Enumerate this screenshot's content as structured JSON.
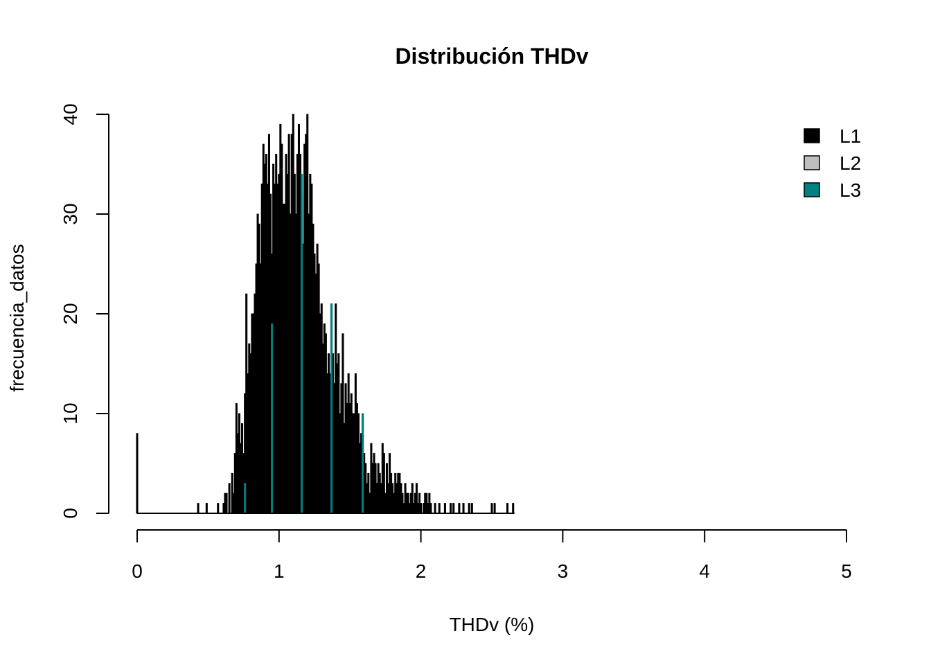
{
  "chart_data": {
    "type": "bar",
    "title": "Distribución THDv",
    "xlabel": "THDv (%)",
    "ylabel": "frecuencia_datos",
    "xlim": [
      0,
      5
    ],
    "ylim": [
      0,
      40
    ],
    "x_ticks": [
      "0",
      "1",
      "2",
      "3",
      "4",
      "5"
    ],
    "y_ticks": [
      "0",
      "10",
      "20",
      "30",
      "40"
    ],
    "grid": false,
    "legend_position": "top-right",
    "bin_width": 0.01,
    "series": [
      {
        "name": "L1",
        "color": "#000000",
        "points": [
          [
            0.0,
            8
          ],
          [
            0.43,
            1
          ],
          [
            0.49,
            1
          ],
          [
            0.57,
            1
          ],
          [
            0.61,
            1
          ],
          [
            0.62,
            2
          ],
          [
            0.63,
            2
          ],
          [
            0.65,
            3
          ],
          [
            0.67,
            4
          ],
          [
            0.68,
            2
          ],
          [
            0.69,
            6
          ],
          [
            0.7,
            11
          ],
          [
            0.71,
            8
          ],
          [
            0.72,
            10
          ],
          [
            0.73,
            7
          ],
          [
            0.74,
            9
          ],
          [
            0.75,
            6
          ],
          [
            0.76,
            12
          ],
          [
            0.77,
            22
          ],
          [
            0.78,
            14
          ],
          [
            0.79,
            17
          ],
          [
            0.8,
            16
          ],
          [
            0.81,
            20
          ],
          [
            0.82,
            20
          ],
          [
            0.83,
            22
          ],
          [
            0.84,
            25
          ],
          [
            0.85,
            30
          ],
          [
            0.86,
            29
          ],
          [
            0.87,
            25
          ],
          [
            0.88,
            33
          ],
          [
            0.89,
            37
          ],
          [
            0.9,
            35
          ],
          [
            0.91,
            36
          ],
          [
            0.92,
            33
          ],
          [
            0.93,
            38
          ],
          [
            0.94,
            32
          ],
          [
            0.95,
            26
          ],
          [
            0.96,
            35
          ],
          [
            0.97,
            33
          ],
          [
            0.98,
            36
          ],
          [
            0.99,
            33
          ],
          [
            1.0,
            34
          ],
          [
            1.01,
            39
          ],
          [
            1.02,
            37
          ],
          [
            1.03,
            31
          ],
          [
            1.04,
            31
          ],
          [
            1.05,
            36
          ],
          [
            1.06,
            34
          ],
          [
            1.07,
            38
          ],
          [
            1.08,
            30
          ],
          [
            1.09,
            38
          ],
          [
            1.1,
            40
          ],
          [
            1.11,
            34
          ],
          [
            1.12,
            30
          ],
          [
            1.13,
            36
          ],
          [
            1.14,
            39
          ],
          [
            1.15,
            36
          ],
          [
            1.16,
            32
          ],
          [
            1.17,
            27
          ],
          [
            1.18,
            37
          ],
          [
            1.19,
            38
          ],
          [
            1.2,
            40
          ],
          [
            1.21,
            30
          ],
          [
            1.22,
            34
          ],
          [
            1.23,
            33
          ],
          [
            1.24,
            29
          ],
          [
            1.25,
            26
          ],
          [
            1.26,
            24
          ],
          [
            1.27,
            27
          ],
          [
            1.28,
            25
          ],
          [
            1.29,
            20
          ],
          [
            1.3,
            21
          ],
          [
            1.31,
            17
          ],
          [
            1.32,
            19
          ],
          [
            1.33,
            18
          ],
          [
            1.34,
            14
          ],
          [
            1.35,
            16
          ],
          [
            1.36,
            14
          ],
          [
            1.37,
            21
          ],
          [
            1.38,
            16
          ],
          [
            1.39,
            13
          ],
          [
            1.4,
            21
          ],
          [
            1.41,
            15
          ],
          [
            1.42,
            16
          ],
          [
            1.43,
            10
          ],
          [
            1.44,
            13
          ],
          [
            1.45,
            18
          ],
          [
            1.46,
            9
          ],
          [
            1.47,
            13
          ],
          [
            1.48,
            11
          ],
          [
            1.49,
            14
          ],
          [
            1.5,
            11
          ],
          [
            1.51,
            12
          ],
          [
            1.52,
            10
          ],
          [
            1.53,
            10
          ],
          [
            1.54,
            14
          ],
          [
            1.55,
            11
          ],
          [
            1.56,
            10
          ],
          [
            1.57,
            7
          ],
          [
            1.58,
            8
          ],
          [
            1.59,
            10
          ],
          [
            1.6,
            6
          ],
          [
            1.61,
            5
          ],
          [
            1.62,
            3
          ],
          [
            1.63,
            4
          ],
          [
            1.64,
            2
          ],
          [
            1.65,
            7
          ],
          [
            1.66,
            5
          ],
          [
            1.67,
            6
          ],
          [
            1.68,
            5
          ],
          [
            1.69,
            3
          ],
          [
            1.7,
            5
          ],
          [
            1.71,
            4
          ],
          [
            1.72,
            3
          ],
          [
            1.73,
            7
          ],
          [
            1.74,
            6
          ],
          [
            1.75,
            2
          ],
          [
            1.76,
            5
          ],
          [
            1.77,
            3
          ],
          [
            1.78,
            6
          ],
          [
            1.79,
            4
          ],
          [
            1.8,
            3
          ],
          [
            1.81,
            2
          ],
          [
            1.82,
            4
          ],
          [
            1.83,
            3
          ],
          [
            1.84,
            4
          ],
          [
            1.85,
            4
          ],
          [
            1.86,
            3
          ],
          [
            1.87,
            2
          ],
          [
            1.88,
            1
          ],
          [
            1.89,
            3
          ],
          [
            1.9,
            2
          ],
          [
            1.91,
            2
          ],
          [
            1.92,
            1
          ],
          [
            1.93,
            2
          ],
          [
            1.94,
            3
          ],
          [
            1.95,
            1
          ],
          [
            1.96,
            2
          ],
          [
            1.97,
            3
          ],
          [
            1.98,
            1
          ],
          [
            1.99,
            2
          ],
          [
            2.0,
            1
          ],
          [
            2.02,
            1
          ],
          [
            2.03,
            2
          ],
          [
            2.04,
            2
          ],
          [
            2.05,
            1
          ],
          [
            2.06,
            2
          ],
          [
            2.07,
            1
          ],
          [
            2.1,
            1
          ],
          [
            2.13,
            1
          ],
          [
            2.17,
            1
          ],
          [
            2.21,
            1
          ],
          [
            2.23,
            1
          ],
          [
            2.27,
            1
          ],
          [
            2.3,
            1
          ],
          [
            2.34,
            1
          ],
          [
            2.36,
            1
          ],
          [
            2.5,
            1
          ],
          [
            2.52,
            1
          ],
          [
            2.61,
            1
          ],
          [
            2.65,
            1
          ]
        ]
      },
      {
        "name": "L2",
        "color": "#bebebe",
        "points": []
      },
      {
        "name": "L3",
        "color": "#008080",
        "points": [
          [
            0.76,
            3
          ],
          [
            0.95,
            19
          ],
          [
            1.16,
            34
          ],
          [
            1.37,
            21
          ],
          [
            1.59,
            10
          ]
        ]
      }
    ]
  }
}
